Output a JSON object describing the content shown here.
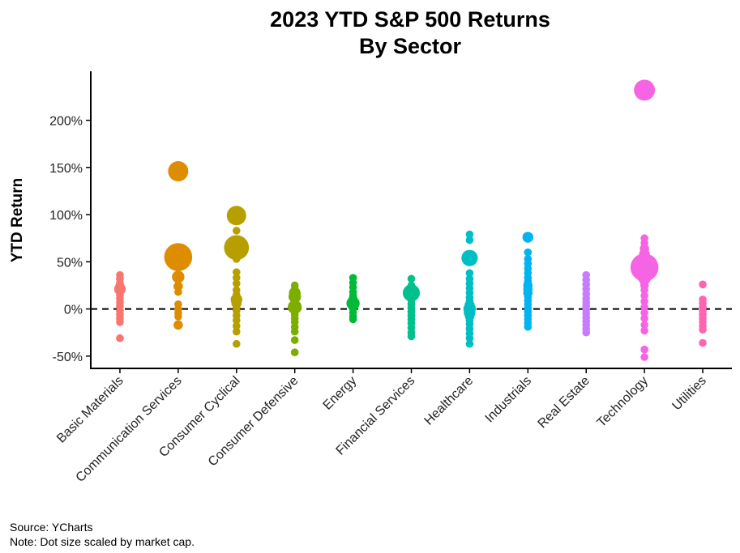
{
  "chart_data": {
    "type": "scatter",
    "title_lines": [
      "2023 YTD S&P 500 Returns",
      "By Sector"
    ],
    "xlabel": "",
    "ylabel": "YTD Return",
    "ylim": [
      -0.63,
      2.52
    ],
    "y_ticks": [
      {
        "value": -0.5,
        "label": "-50%"
      },
      {
        "value": 0,
        "label": "0%"
      },
      {
        "value": 0.5,
        "label": "50%"
      },
      {
        "value": 1.0,
        "label": "100%"
      },
      {
        "value": 1.5,
        "label": "150%"
      },
      {
        "value": 2.0,
        "label": "200%"
      }
    ],
    "reference_line": {
      "y": 0,
      "style": "dashed"
    },
    "grid": false,
    "legend": "none",
    "size_encoding": "market cap (relative)",
    "categories": [
      "Basic Materials",
      "Communication Services",
      "Consumer Cyclical",
      "Consumer Defensive",
      "Energy",
      "Financial Services",
      "Healthcare",
      "Industrials",
      "Real Estate",
      "Technology",
      "Utilities"
    ],
    "colors": [
      "#F8766D",
      "#DE8C00",
      "#B79F00",
      "#7CAE00",
      "#00BA38",
      "#00C08B",
      "#00BFC4",
      "#00B4F0",
      "#C77CFF",
      "#F564E3",
      "#FF64B0"
    ],
    "series": [
      {
        "category": "Basic Materials",
        "points": [
          {
            "y": 0.36,
            "s": 1
          },
          {
            "y": 0.32,
            "s": 1
          },
          {
            "y": 0.28,
            "s": 1
          },
          {
            "y": 0.24,
            "s": 1.2
          },
          {
            "y": 0.21,
            "s": 1.5
          },
          {
            "y": 0.18,
            "s": 1
          },
          {
            "y": 0.15,
            "s": 1
          },
          {
            "y": 0.11,
            "s": 1
          },
          {
            "y": 0.07,
            "s": 1
          },
          {
            "y": 0.03,
            "s": 1
          },
          {
            "y": -0.02,
            "s": 1
          },
          {
            "y": -0.06,
            "s": 1
          },
          {
            "y": -0.1,
            "s": 1
          },
          {
            "y": -0.14,
            "s": 1
          },
          {
            "y": -0.31,
            "s": 1
          }
        ]
      },
      {
        "category": "Communication Services",
        "points": [
          {
            "y": 1.46,
            "s": 2.6
          },
          {
            "y": 0.55,
            "s": 3.6
          },
          {
            "y": 0.34,
            "s": 1.6
          },
          {
            "y": 0.24,
            "s": 1.2
          },
          {
            "y": 0.18,
            "s": 1
          },
          {
            "y": 0.05,
            "s": 1
          },
          {
            "y": 0.0,
            "s": 1
          },
          {
            "y": -0.04,
            "s": 1
          },
          {
            "y": -0.08,
            "s": 1
          },
          {
            "y": -0.17,
            "s": 1.2
          }
        ]
      },
      {
        "category": "Consumer Cyclical",
        "points": [
          {
            "y": 0.99,
            "s": 2.5
          },
          {
            "y": 0.83,
            "s": 1
          },
          {
            "y": 0.65,
            "s": 3.2
          },
          {
            "y": 0.53,
            "s": 1
          },
          {
            "y": 0.39,
            "s": 1
          },
          {
            "y": 0.33,
            "s": 1
          },
          {
            "y": 0.27,
            "s": 1
          },
          {
            "y": 0.2,
            "s": 1
          },
          {
            "y": 0.15,
            "s": 1
          },
          {
            "y": 0.1,
            "s": 1.5
          },
          {
            "y": 0.06,
            "s": 1.3
          },
          {
            "y": 0.02,
            "s": 1
          },
          {
            "y": -0.02,
            "s": 1
          },
          {
            "y": -0.07,
            "s": 1
          },
          {
            "y": -0.12,
            "s": 1
          },
          {
            "y": -0.18,
            "s": 1
          },
          {
            "y": -0.24,
            "s": 1
          },
          {
            "y": -0.37,
            "s": 1
          }
        ]
      },
      {
        "category": "Consumer Defensive",
        "points": [
          {
            "y": 0.25,
            "s": 1
          },
          {
            "y": 0.21,
            "s": 1
          },
          {
            "y": 0.17,
            "s": 1.5
          },
          {
            "y": 0.13,
            "s": 1.6
          },
          {
            "y": 0.09,
            "s": 1
          },
          {
            "y": 0.05,
            "s": 1
          },
          {
            "y": 0.02,
            "s": 1.8
          },
          {
            "y": -0.02,
            "s": 1
          },
          {
            "y": -0.06,
            "s": 1
          },
          {
            "y": -0.1,
            "s": 1
          },
          {
            "y": -0.14,
            "s": 1
          },
          {
            "y": -0.19,
            "s": 1
          },
          {
            "y": -0.24,
            "s": 1
          },
          {
            "y": -0.33,
            "s": 1
          },
          {
            "y": -0.46,
            "s": 1
          }
        ]
      },
      {
        "category": "Energy",
        "points": [
          {
            "y": 0.33,
            "s": 1
          },
          {
            "y": 0.28,
            "s": 1
          },
          {
            "y": 0.23,
            "s": 1
          },
          {
            "y": 0.18,
            "s": 1
          },
          {
            "y": 0.14,
            "s": 1
          },
          {
            "y": 0.1,
            "s": 1.2
          },
          {
            "y": 0.06,
            "s": 1.7
          },
          {
            "y": 0.03,
            "s": 1.3
          },
          {
            "y": 0.0,
            "s": 1
          },
          {
            "y": -0.04,
            "s": 1
          },
          {
            "y": -0.08,
            "s": 1
          },
          {
            "y": -0.11,
            "s": 1
          }
        ]
      },
      {
        "category": "Financial Services",
        "points": [
          {
            "y": 0.32,
            "s": 1
          },
          {
            "y": 0.25,
            "s": 1
          },
          {
            "y": 0.2,
            "s": 1.6
          },
          {
            "y": 0.17,
            "s": 2.2
          },
          {
            "y": 0.13,
            "s": 1
          },
          {
            "y": 0.09,
            "s": 1
          },
          {
            "y": 0.05,
            "s": 1
          },
          {
            "y": 0.01,
            "s": 1
          },
          {
            "y": -0.03,
            "s": 1
          },
          {
            "y": -0.07,
            "s": 1
          },
          {
            "y": -0.11,
            "s": 1
          },
          {
            "y": -0.15,
            "s": 1
          },
          {
            "y": -0.2,
            "s": 1
          },
          {
            "y": -0.25,
            "s": 1
          },
          {
            "y": -0.29,
            "s": 1
          }
        ]
      },
      {
        "category": "Healthcare",
        "points": [
          {
            "y": 0.79,
            "s": 1
          },
          {
            "y": 0.73,
            "s": 1
          },
          {
            "y": 0.54,
            "s": 2.1
          },
          {
            "y": 0.38,
            "s": 1
          },
          {
            "y": 0.32,
            "s": 1
          },
          {
            "y": 0.27,
            "s": 1
          },
          {
            "y": 0.22,
            "s": 1
          },
          {
            "y": 0.17,
            "s": 1
          },
          {
            "y": 0.12,
            "s": 1
          },
          {
            "y": 0.08,
            "s": 1
          },
          {
            "y": 0.04,
            "s": 1.3
          },
          {
            "y": 0.0,
            "s": 1.6
          },
          {
            "y": -0.04,
            "s": 1.5
          },
          {
            "y": -0.08,
            "s": 1.2
          },
          {
            "y": -0.12,
            "s": 1
          },
          {
            "y": -0.16,
            "s": 1
          },
          {
            "y": -0.21,
            "s": 1
          },
          {
            "y": -0.26,
            "s": 1
          },
          {
            "y": -0.31,
            "s": 1
          },
          {
            "y": -0.37,
            "s": 1
          }
        ]
      },
      {
        "category": "Industrials",
        "points": [
          {
            "y": 0.76,
            "s": 1.4
          },
          {
            "y": 0.6,
            "s": 1
          },
          {
            "y": 0.53,
            "s": 1
          },
          {
            "y": 0.48,
            "s": 1
          },
          {
            "y": 0.43,
            "s": 1
          },
          {
            "y": 0.38,
            "s": 1
          },
          {
            "y": 0.33,
            "s": 1
          },
          {
            "y": 0.29,
            "s": 1
          },
          {
            "y": 0.25,
            "s": 1.2
          },
          {
            "y": 0.21,
            "s": 1.2
          },
          {
            "y": 0.17,
            "s": 1.2
          },
          {
            "y": 0.13,
            "s": 1
          },
          {
            "y": 0.09,
            "s": 1
          },
          {
            "y": 0.05,
            "s": 1
          },
          {
            "y": 0.01,
            "s": 1
          },
          {
            "y": -0.03,
            "s": 1
          },
          {
            "y": -0.07,
            "s": 1
          },
          {
            "y": -0.11,
            "s": 1
          },
          {
            "y": -0.15,
            "s": 1
          },
          {
            "y": -0.19,
            "s": 1
          }
        ]
      },
      {
        "category": "Real Estate",
        "points": [
          {
            "y": 0.36,
            "s": 1
          },
          {
            "y": 0.31,
            "s": 1
          },
          {
            "y": 0.26,
            "s": 1
          },
          {
            "y": 0.21,
            "s": 1
          },
          {
            "y": 0.16,
            "s": 1
          },
          {
            "y": 0.11,
            "s": 1
          },
          {
            "y": 0.07,
            "s": 1
          },
          {
            "y": 0.03,
            "s": 1
          },
          {
            "y": -0.01,
            "s": 1
          },
          {
            "y": -0.05,
            "s": 1
          },
          {
            "y": -0.09,
            "s": 1
          },
          {
            "y": -0.13,
            "s": 1
          },
          {
            "y": -0.17,
            "s": 1
          },
          {
            "y": -0.21,
            "s": 1
          },
          {
            "y": -0.25,
            "s": 1
          }
        ]
      },
      {
        "category": "Technology",
        "points": [
          {
            "y": 2.32,
            "s": 2.7
          },
          {
            "y": 0.75,
            "s": 1
          },
          {
            "y": 0.7,
            "s": 1
          },
          {
            "y": 0.64,
            "s": 1.2
          },
          {
            "y": 0.58,
            "s": 1.4
          },
          {
            "y": 0.52,
            "s": 1.8
          },
          {
            "y": 0.46,
            "s": 2.6
          },
          {
            "y": 0.44,
            "s": 3.6
          },
          {
            "y": 0.39,
            "s": 2.6
          },
          {
            "y": 0.34,
            "s": 1.8
          },
          {
            "y": 0.3,
            "s": 1.3
          },
          {
            "y": 0.25,
            "s": 1.1
          },
          {
            "y": 0.2,
            "s": 1
          },
          {
            "y": 0.14,
            "s": 1
          },
          {
            "y": 0.08,
            "s": 1
          },
          {
            "y": 0.02,
            "s": 1
          },
          {
            "y": -0.04,
            "s": 1
          },
          {
            "y": -0.1,
            "s": 1
          },
          {
            "y": -0.17,
            "s": 1
          },
          {
            "y": -0.23,
            "s": 1
          },
          {
            "y": -0.43,
            "s": 1
          },
          {
            "y": -0.51,
            "s": 1
          }
        ]
      },
      {
        "category": "Utilities",
        "points": [
          {
            "y": 0.26,
            "s": 1
          },
          {
            "y": 0.1,
            "s": 1
          },
          {
            "y": 0.06,
            "s": 1
          },
          {
            "y": 0.02,
            "s": 1
          },
          {
            "y": -0.02,
            "s": 1
          },
          {
            "y": -0.06,
            "s": 1
          },
          {
            "y": -0.1,
            "s": 1
          },
          {
            "y": -0.14,
            "s": 1
          },
          {
            "y": -0.18,
            "s": 1
          },
          {
            "y": -0.22,
            "s": 1
          },
          {
            "y": -0.36,
            "s": 1
          }
        ]
      }
    ]
  },
  "footer": {
    "source": "Source: YCharts",
    "note": "Note: Dot size scaled by market cap."
  }
}
